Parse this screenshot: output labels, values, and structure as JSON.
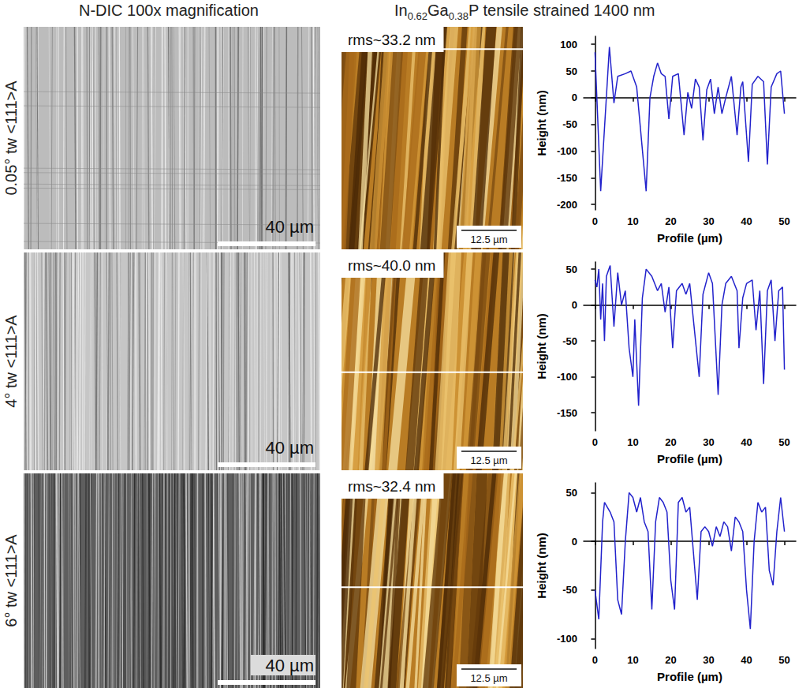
{
  "header": {
    "left": "N-DIC 100x magnification",
    "right": [
      {
        "text": "In"
      },
      {
        "text": "0.62",
        "sub": true
      },
      {
        "text": "Ga"
      },
      {
        "text": "0.38",
        "sub": true
      },
      {
        "text": "P  tensile strained 1400 nm"
      }
    ]
  },
  "rows": [
    {
      "label": "0.05° tw <111>A",
      "dic_scale_bar": "40 µm",
      "afm_rms": "rms~33.2 nm",
      "afm_scale_bar": "12.5 µm"
    },
    {
      "label": "4° tw <111>A",
      "dic_scale_bar": "40 µm",
      "afm_rms": "rms~40.0 nm",
      "afm_scale_bar": "12.5 µm"
    },
    {
      "label": "6° tw <111>A",
      "dic_scale_bar": "40 µm",
      "afm_rms": "rms~32.4 nm",
      "afm_scale_bar": "12.5 µm"
    }
  ],
  "chart_data": [
    {
      "type": "line",
      "x_label": "Profile (µm)",
      "y_label": "Height (nm)",
      "color": "#2222cc",
      "x": [
        0,
        1.5,
        3.8,
        5,
        6,
        8,
        9.5,
        11,
        13.5,
        14.5,
        15.5,
        16.5,
        17.5,
        18.5,
        19.5,
        20.5,
        22,
        23.5,
        24.5,
        25.5,
        26.5,
        27.5,
        28.5,
        29.5,
        30.5,
        31.5,
        32.5,
        33.5,
        34.5,
        36,
        37.5,
        38.5,
        39,
        40.5,
        41.5,
        43,
        44.5,
        45.5,
        46.5,
        48,
        49,
        50
      ],
      "values": [
        85,
        -175,
        95,
        -10,
        40,
        45,
        50,
        20,
        -175,
        0,
        40,
        65,
        45,
        40,
        -40,
        40,
        45,
        -70,
        10,
        -20,
        35,
        20,
        -80,
        15,
        35,
        -30,
        20,
        -30,
        0,
        40,
        -70,
        20,
        30,
        -120,
        25,
        40,
        30,
        -125,
        20,
        45,
        50,
        -30
      ],
      "xlim": [
        -3,
        53
      ],
      "xticks": [
        0,
        10,
        20,
        30,
        40,
        50
      ],
      "ylim": [
        -210,
        115
      ],
      "yticks": [
        -200,
        -150,
        -100,
        -50,
        0,
        50,
        100
      ]
    },
    {
      "type": "line",
      "x_label": "Profile (µm)",
      "y_label": "Height (nm)",
      "color": "#2222cc",
      "x": [
        0,
        0.5,
        1,
        1.5,
        2,
        2.5,
        3,
        4,
        5,
        6,
        7,
        8,
        9,
        10,
        10.5,
        11.5,
        12.5,
        13.5,
        15,
        16.5,
        17.5,
        18.5,
        19.5,
        20.5,
        21.5,
        23,
        24,
        25,
        27.5,
        28.5,
        30,
        31,
        32.5,
        33.5,
        34.5,
        36,
        37.5,
        38,
        39,
        40,
        41.5,
        42.5,
        43.5,
        44.5,
        45.5,
        46.5,
        47.5,
        48.5,
        49.5,
        50
      ],
      "values": [
        35,
        25,
        50,
        -20,
        30,
        -50,
        40,
        55,
        -30,
        45,
        0,
        20,
        -60,
        -100,
        -20,
        -140,
        10,
        50,
        40,
        20,
        30,
        -10,
        25,
        -60,
        20,
        30,
        15,
        30,
        -100,
        15,
        45,
        30,
        -125,
        0,
        30,
        40,
        20,
        -60,
        10,
        30,
        35,
        -35,
        20,
        -110,
        20,
        35,
        -50,
        20,
        25,
        -90
      ],
      "xlim": [
        -3,
        53
      ],
      "xticks": [
        0,
        10,
        20,
        30,
        40,
        50
      ],
      "ylim": [
        -175,
        60
      ],
      "yticks": [
        -150,
        -100,
        -50,
        0,
        50
      ]
    },
    {
      "type": "line",
      "x_label": "Profile (µm)",
      "y_label": "Height (nm)",
      "color": "#2222cc",
      "x": [
        0,
        1,
        2,
        2.5,
        4,
        5,
        6,
        7,
        8,
        9,
        10,
        11,
        12,
        13,
        14,
        15,
        16,
        17,
        18,
        19,
        20,
        21,
        22,
        23,
        24,
        25,
        27,
        28,
        29,
        30,
        31,
        32,
        33,
        34,
        35,
        36,
        37,
        38,
        39,
        40,
        41,
        42,
        43,
        44,
        45,
        46,
        47,
        48,
        49,
        50
      ],
      "values": [
        -50,
        -80,
        20,
        40,
        30,
        20,
        -60,
        -75,
        0,
        50,
        45,
        30,
        45,
        20,
        10,
        -70,
        20,
        45,
        40,
        30,
        -40,
        -70,
        40,
        45,
        30,
        35,
        -60,
        10,
        15,
        10,
        -5,
        15,
        5,
        20,
        15,
        -10,
        25,
        20,
        10,
        -50,
        -90,
        0,
        40,
        30,
        35,
        -30,
        -45,
        10,
        45,
        10
      ],
      "xlim": [
        -3,
        53
      ],
      "xticks": [
        0,
        10,
        20,
        30,
        40,
        50
      ],
      "ylim": [
        -110,
        60
      ],
      "yticks": [
        -100,
        -50,
        0,
        50
      ]
    }
  ]
}
